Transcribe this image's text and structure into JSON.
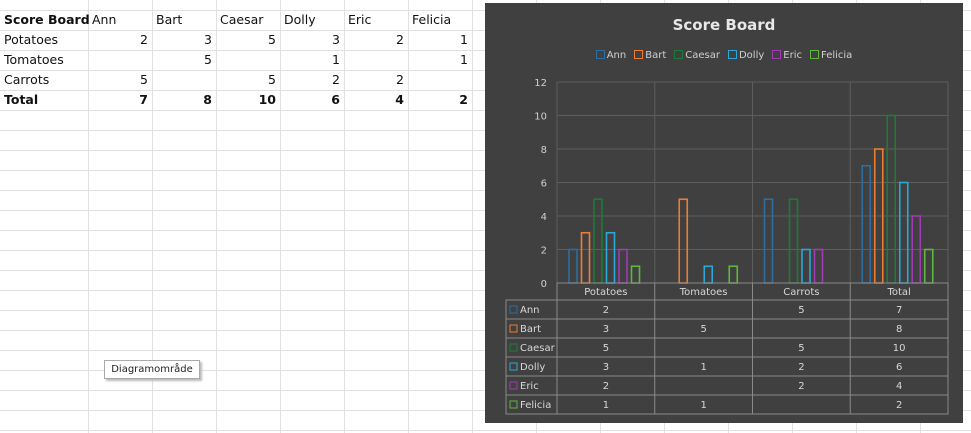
{
  "sheet": {
    "header": [
      "Score Board",
      "Ann",
      "Bart",
      "Caesar",
      "Dolly",
      "Eric",
      "Felicia"
    ],
    "rows": [
      {
        "label": "Potatoes",
        "values": [
          "2",
          "3",
          "5",
          "3",
          "2",
          "1"
        ],
        "bold": false
      },
      {
        "label": "Tomatoes",
        "values": [
          "",
          "5",
          "",
          "1",
          "",
          "1"
        ],
        "bold": false
      },
      {
        "label": "Carrots",
        "values": [
          "5",
          "",
          "5",
          "2",
          "2",
          ""
        ],
        "bold": false
      },
      {
        "label": "Total",
        "values": [
          "7",
          "8",
          "10",
          "6",
          "4",
          "2"
        ],
        "bold": true
      }
    ]
  },
  "tooltip": "Diagramområde",
  "chart_data": {
    "type": "bar",
    "title": "Score Board",
    "categories": [
      "Potatoes",
      "Tomatoes",
      "Carrots",
      "Total"
    ],
    "series": [
      {
        "name": "Ann",
        "values": [
          2,
          null,
          5,
          7
        ],
        "color": "#2e6e9e"
      },
      {
        "name": "Bart",
        "values": [
          3,
          5,
          null,
          8
        ],
        "color": "#ed7d31"
      },
      {
        "name": "Caesar",
        "values": [
          5,
          null,
          5,
          10
        ],
        "color": "#1f7a3a"
      },
      {
        "name": "Dolly",
        "values": [
          3,
          1,
          2,
          6
        ],
        "color": "#2aa8d8"
      },
      {
        "name": "Eric",
        "values": [
          2,
          null,
          2,
          4
        ],
        "color": "#a03ab5"
      },
      {
        "name": "Felicia",
        "values": [
          1,
          1,
          null,
          2
        ],
        "color": "#5db83d"
      }
    ],
    "ylim": [
      0,
      12
    ],
    "yticks": [
      "0",
      "2",
      "4",
      "6",
      "8",
      "10",
      "12"
    ],
    "grid": true,
    "legend": "top",
    "data_table": true
  }
}
